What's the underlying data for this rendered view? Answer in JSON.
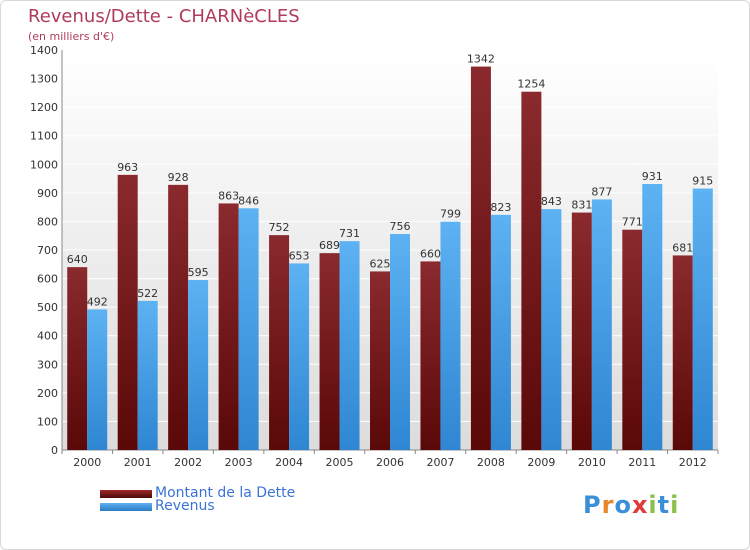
{
  "header": {
    "title": "Revenus/Dette - CHARNèCLES",
    "subtitle": "(en milliers d'€)"
  },
  "legend": [
    {
      "label": "Montant de la Dette",
      "color": "#7a1a1a"
    },
    {
      "label": "Revenus",
      "color": "#3d9be0"
    }
  ],
  "logo": {
    "letters": [
      "P",
      "r",
      "o",
      "x",
      "i",
      "t",
      "i"
    ],
    "colors": [
      "#3b8fd8",
      "#e8862a",
      "#3b8fd8",
      "#e03a3a",
      "#8cc04a",
      "#3b8fd8",
      "#8cc04a"
    ]
  },
  "chart_data": {
    "type": "bar",
    "categories": [
      "2000",
      "2001",
      "2002",
      "2003",
      "2004",
      "2005",
      "2006",
      "2007",
      "2008",
      "2009",
      "2010",
      "2011",
      "2012"
    ],
    "series": [
      {
        "name": "Montant de la Dette",
        "values": [
          640,
          963,
          928,
          863,
          752,
          689,
          625,
          660,
          1342,
          1254,
          831,
          771,
          681
        ],
        "color": "#7a1a1a"
      },
      {
        "name": "Revenus",
        "values": [
          492,
          522,
          595,
          846,
          653,
          731,
          756,
          799,
          823,
          843,
          877,
          931,
          915
        ],
        "color": "#3d9be0"
      }
    ],
    "title": "Revenus/Dette - CHARNèCLES",
    "ylabel": "(en milliers d'€)",
    "xlabel": "",
    "ylim": [
      0,
      1400
    ],
    "yticks": [
      0,
      100,
      200,
      300,
      400,
      500,
      600,
      700,
      800,
      900,
      1000,
      1100,
      1200,
      1300,
      1400
    ],
    "grid": true,
    "legend_position": "bottom-left"
  }
}
